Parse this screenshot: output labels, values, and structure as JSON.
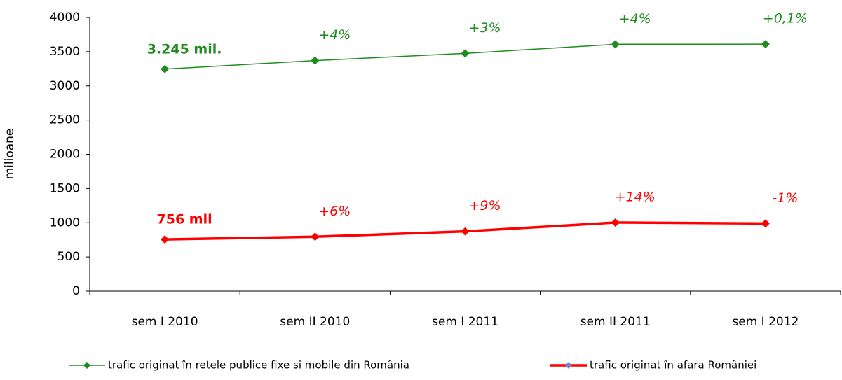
{
  "chart_data": {
    "type": "line",
    "y_label": "milioane",
    "categories": [
      "sem I 2010",
      "sem II 2010",
      "sem I 2011",
      "sem II 2011",
      "sem I 2012"
    ],
    "series": [
      {
        "name": "trafic originat în retele publice fixe si mobile din România",
        "color": "#1e8c1e",
        "line_width": 1.5,
        "values": [
          3245,
          3370,
          3475,
          3608,
          3610
        ],
        "annotations": [
          "3.245 mil.",
          "+4%",
          "+3%",
          "+4%",
          "+0,1%"
        ]
      },
      {
        "name": "trafic originat în afara României",
        "color": "#ff0000",
        "line_width": 3.5,
        "values": [
          756,
          795,
          873,
          1003,
          988
        ],
        "annotations": [
          "756 mil",
          "+6%",
          "+9%",
          "+14%",
          "-1%"
        ]
      }
    ],
    "ylim": [
      0,
      4000
    ],
    "yticks": [
      0,
      500,
      1000,
      1500,
      2000,
      2500,
      3000,
      3500,
      4000
    ],
    "grid": false,
    "legend": "bottom"
  }
}
